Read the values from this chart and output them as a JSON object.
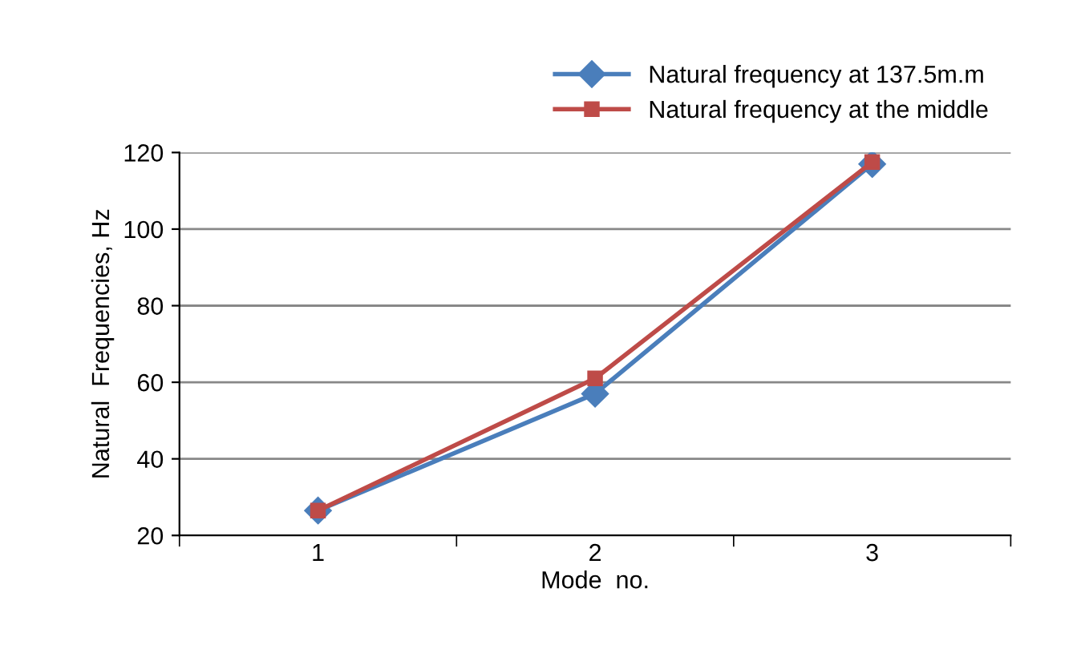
{
  "chart_data": {
    "type": "line",
    "xlabel": "Mode  no.",
    "ylabel": "Natural  Frequencies, Hz",
    "categories": [
      "1",
      "2",
      "3"
    ],
    "series": [
      {
        "name": "Natural frequency at 137.5m.m",
        "color": "#4a7ebb",
        "marker": "diamond",
        "values": [
          26.5,
          57,
          117
        ]
      },
      {
        "name": "Natural frequency at the middle",
        "color": "#be4b48",
        "marker": "square",
        "values": [
          26.5,
          61,
          117.5
        ]
      }
    ],
    "ylim": [
      20,
      120
    ],
    "yticks": [
      20,
      40,
      60,
      80,
      100,
      120
    ],
    "grid": "y",
    "legend": "top right",
    "line_style": "solid"
  }
}
